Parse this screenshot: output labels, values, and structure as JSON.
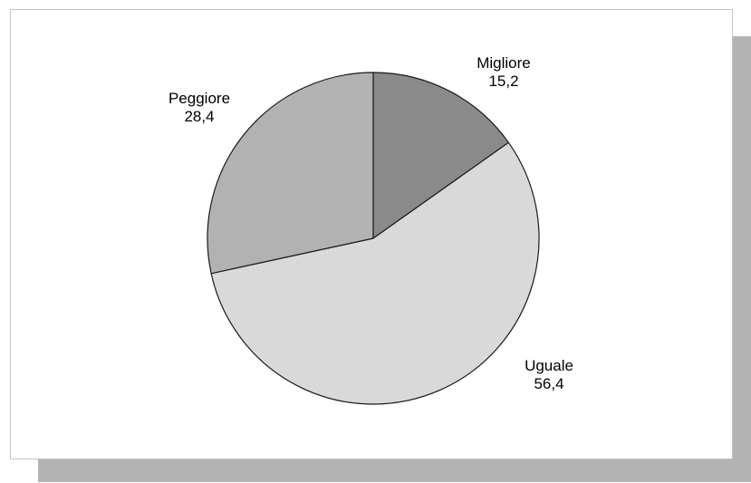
{
  "chart_data": {
    "type": "pie",
    "title": "",
    "start_angle_deg": 0,
    "direction": "clockwise",
    "slices": [
      {
        "label": "Migliore",
        "value": 15.2,
        "value_text": "15,2",
        "color": "#8a8a8a"
      },
      {
        "label": "Uguale",
        "value": 56.4,
        "value_text": "56,4",
        "color": "#d9d9d9"
      },
      {
        "label": "Peggiore",
        "value": 28.4,
        "value_text": "28,4",
        "color": "#b2b2b2"
      }
    ]
  }
}
